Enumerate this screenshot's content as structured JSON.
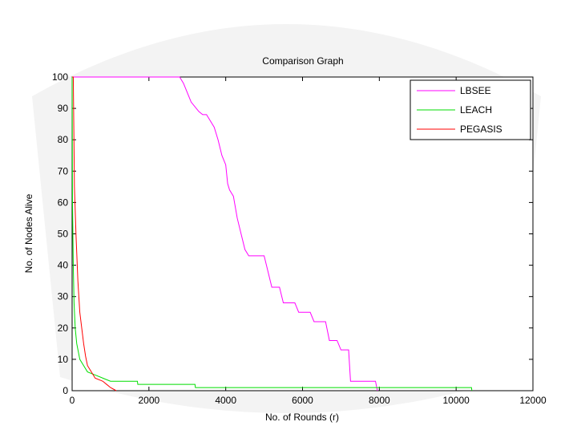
{
  "chart_data": {
    "type": "line",
    "title": "Comparison Graph",
    "x_label": "No. of Rounds (r)",
    "y_label": "No. of Nodes Alive",
    "xlim": [
      0,
      12000
    ],
    "xticks": [
      0,
      2000,
      4000,
      6000,
      8000,
      10000,
      12000
    ],
    "ylim": [
      0,
      100
    ],
    "yticks": [
      0,
      10,
      20,
      30,
      40,
      50,
      60,
      70,
      80,
      90,
      100
    ],
    "legend": "top-right",
    "series": [
      {
        "name": "LBSEE",
        "color": "#ff00ff",
        "x": [
          0,
          2800,
          2900,
          3000,
          3100,
          3300,
          3400,
          3500,
          3700,
          3800,
          3900,
          4000,
          4050,
          4100,
          4200,
          4300,
          4400,
          4500,
          4600,
          5000,
          5100,
          5200,
          5400,
          5500,
          5800,
          5900,
          6200,
          6300,
          6600,
          6700,
          6900,
          7000,
          7200,
          7250,
          7900,
          7950
        ],
        "values": [
          100,
          100,
          98,
          95,
          92,
          89,
          88,
          88,
          84,
          80,
          75,
          72,
          66,
          64,
          62,
          55,
          50,
          45,
          43,
          43,
          38,
          33,
          33,
          28,
          28,
          25,
          25,
          22,
          22,
          16,
          16,
          13,
          13,
          3,
          3,
          0
        ]
      },
      {
        "name": "LEACH",
        "color": "#00dd00",
        "x": [
          0,
          10,
          30,
          50,
          80,
          120,
          200,
          300,
          400,
          600,
          800,
          1000,
          1700,
          1710,
          3200,
          3210,
          10400,
          10410
        ],
        "values": [
          100,
          60,
          40,
          28,
          20,
          15,
          10,
          8,
          6,
          5,
          4,
          3,
          3,
          2,
          2,
          1,
          1,
          0
        ]
      },
      {
        "name": "PEGASIS",
        "color": "#ff0000",
        "x": [
          0,
          30,
          60,
          100,
          150,
          200,
          250,
          300,
          350,
          400,
          500,
          600,
          800,
          900,
          1000,
          1150
        ],
        "values": [
          100,
          100,
          65,
          50,
          35,
          25,
          20,
          15,
          11,
          8,
          6,
          4,
          3,
          2,
          1,
          0
        ]
      }
    ]
  }
}
